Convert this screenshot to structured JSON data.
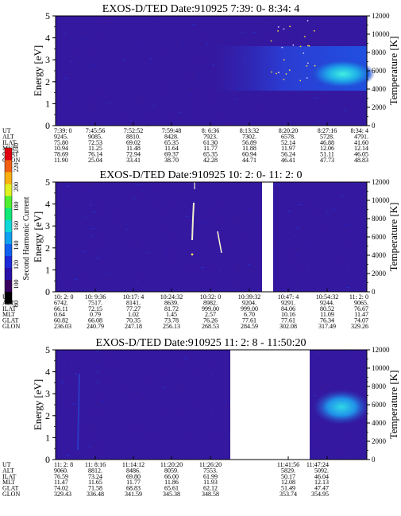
{
  "figure": {
    "colorbar": {
      "label": "Second Harmonic Current",
      "ticks": [
        "80",
        "100",
        "120",
        "140",
        "160",
        "180",
        "200",
        "220",
        "240"
      ],
      "colors": [
        "#000000",
        "#3a0060",
        "#2a10a8",
        "#1e2ad8",
        "#1060f0",
        "#10a0f0",
        "#10d8d8",
        "#10e878",
        "#50f030",
        "#e0f020",
        "#f8b010",
        "#f06010",
        "#e00010"
      ]
    },
    "colors": {
      "background": "#3418a0",
      "band": "#2040d0",
      "hot": "#30e8e0",
      "gap": "#ffffff"
    }
  },
  "chart_data": [
    {
      "type": "heatmap",
      "title": "EXOS-D/TED   Date:910925   7:39: 0- 8:34: 4",
      "ylabel": "Energy [eV]",
      "ylabel_right": "Temperature [K]",
      "ylim": [
        0,
        5
      ],
      "y_ticks": [
        "0",
        "1",
        "2",
        "3",
        "4",
        "5"
      ],
      "y2lim": [
        0,
        12000
      ],
      "y2_ticks": [
        "0",
        "2000",
        "4000",
        "6000",
        "8000",
        "10000",
        "12000"
      ],
      "ephem_labels": [
        "UT",
        "ALT",
        "ILAT",
        "MLT",
        "GLAT",
        "GLON"
      ],
      "columns": [
        [
          "7:39: 0",
          "9245.",
          "75.80",
          "10.94",
          "78.69",
          "11.90"
        ],
        [
          "7:45:56",
          "9085.",
          "72.53",
          "11.25",
          "76.14",
          "25.04"
        ],
        [
          "7:52:52",
          "8810.",
          "69.02",
          "11.48",
          "72.94",
          "33.41"
        ],
        [
          "7:59:48",
          "8428.",
          "65.35",
          "11.64",
          "69.37",
          "38.70"
        ],
        [
          "8: 6:36",
          "7923.",
          "61.30",
          "11.77",
          "65.35",
          "42.28"
        ],
        [
          "8:13:32",
          "7302.",
          "56.89",
          "11.88",
          "60.94",
          "44.71"
        ],
        [
          "8:20:20",
          "6578.",
          "52.14",
          "11.97",
          "56.24",
          "46.41"
        ],
        [
          "8:27:16",
          "5728.",
          "46.88",
          "12.06",
          "51.11",
          "47.73"
        ],
        [
          "8:34: 4",
          "4791.",
          "41.60",
          "12.14",
          "46.05",
          "48.83"
        ]
      ]
    },
    {
      "type": "heatmap",
      "title": "EXOS-D/TED   Date:910925   10: 2: 0- 11: 2: 0",
      "ylabel": "Energy [eV]",
      "ylabel_right": "Temperature [K]",
      "ylim": [
        0,
        5
      ],
      "y_ticks": [
        "0",
        "1",
        "2",
        "3",
        "4",
        "5"
      ],
      "y2lim": [
        0,
        12000
      ],
      "y2_ticks": [
        "0",
        "2000",
        "4000",
        "6000",
        "8000",
        "10000",
        "12000"
      ],
      "ephem_labels": [
        "UT",
        "ALT",
        "ILAT",
        "MLT",
        "GLAT",
        "GLON"
      ],
      "columns": [
        [
          "10: 2: 0",
          "6742.",
          "66.11",
          "0.64",
          "60.82",
          "236.03"
        ],
        [
          "10: 9:36",
          "7517.",
          "72.15",
          "0.79",
          "66.08",
          "240.79"
        ],
        [
          "10:17: 4",
          "8141.",
          "77.27",
          "1.02",
          "70.35",
          "247.18"
        ],
        [
          "10:24:32",
          "8639.",
          "81.72",
          "1.45",
          "73.78",
          "256.13"
        ],
        [
          "10:32: 0",
          "8982.",
          "999.00",
          "2.57",
          "76.26",
          "268.53"
        ],
        [
          "10:39:32",
          "9204.",
          "999.00",
          "6.70",
          "77.61",
          "284.59"
        ],
        [
          "10:47: 4",
          "9291.",
          "84.06",
          "10.16",
          "77.61",
          "302.08"
        ],
        [
          "10:54:32",
          "9244.",
          "80.52",
          "11.09",
          "76.34",
          "317.49"
        ],
        [
          "11: 2: 0",
          "9065.",
          "76.67",
          "11.47",
          "74.07",
          "329.26"
        ]
      ]
    },
    {
      "type": "heatmap",
      "title": "EXOS-D/TED   Date:910925   11: 2: 8 - 11:50:20",
      "ylabel": "Energy [eV]",
      "ylabel_right": "Temperature [K]",
      "ylim": [
        0,
        5
      ],
      "y_ticks": [
        "0",
        "1",
        "2",
        "3",
        "4",
        "5"
      ],
      "y2lim": [
        0,
        12000
      ],
      "y2_ticks": [
        "0",
        "2000",
        "4000",
        "6000",
        "8000",
        "10000",
        "12000"
      ],
      "ephem_labels": [
        "UT",
        "ALT",
        "ILAT",
        "MLT",
        "GLAT",
        "GLON"
      ],
      "columns": [
        [
          "11: 2: 8",
          "9060.",
          "76.59",
          "11.47",
          "74.02",
          "329.43"
        ],
        [
          "11: 8:16",
          "8812.",
          "73.24",
          "11.65",
          "71.58",
          "336.48"
        ],
        [
          "11:14:12",
          "8486.",
          "69.80",
          "11.77",
          "68.83",
          "341.59"
        ],
        [
          "11:20:20",
          "8059.",
          "66.00",
          "11.86",
          "65.61",
          "345.38"
        ],
        [
          "11:26:20",
          "7553.",
          "61.99",
          "11.93",
          "62.12",
          "348.58"
        ],
        [
          "11:41:56",
          "5829.",
          "50.17",
          "12.08",
          "51.49",
          "353.74"
        ],
        [
          "11:47:24",
          "5092.",
          "46.04",
          "12.13",
          "47.47",
          "354.95"
        ]
      ]
    }
  ]
}
